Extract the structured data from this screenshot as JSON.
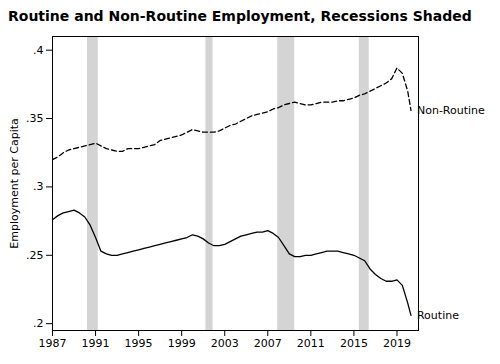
{
  "chart_data": {
    "type": "line",
    "title": "Routine and Non-Routine Employment, Recessions Shaded",
    "ylabel": "Employment per Capita",
    "x": [
      1987,
      1987.5,
      1988,
      1988.5,
      1989,
      1989.5,
      1990,
      1990.5,
      1991,
      1991.5,
      1992,
      1992.5,
      1993,
      1993.5,
      1994,
      1994.5,
      1995,
      1995.5,
      1996,
      1996.5,
      1997,
      1997.5,
      1998,
      1998.5,
      1999,
      1999.5,
      2000,
      2000.5,
      2001,
      2001.5,
      2002,
      2002.5,
      2003,
      2003.5,
      2004,
      2004.5,
      2005,
      2005.5,
      2006,
      2006.5,
      2007,
      2007.5,
      2008,
      2008.5,
      2009,
      2009.5,
      2010,
      2010.5,
      2011,
      2011.5,
      2012,
      2012.5,
      2013,
      2013.5,
      2014,
      2014.5,
      2015,
      2015.5,
      2016,
      2016.5,
      2017,
      2017.5,
      2018,
      2018.5,
      2019,
      2019.5,
      2020,
      2020.3
    ],
    "series": [
      {
        "name": "Non-Routine",
        "color": "#000000",
        "line_style": "dashed",
        "values": [
          0.32,
          0.322,
          0.325,
          0.327,
          0.328,
          0.329,
          0.33,
          0.331,
          0.332,
          0.33,
          0.328,
          0.327,
          0.326,
          0.326,
          0.328,
          0.328,
          0.328,
          0.329,
          0.33,
          0.331,
          0.334,
          0.335,
          0.336,
          0.337,
          0.338,
          0.34,
          0.342,
          0.341,
          0.34,
          0.34,
          0.34,
          0.341,
          0.343,
          0.345,
          0.346,
          0.348,
          0.35,
          0.352,
          0.353,
          0.354,
          0.355,
          0.357,
          0.358,
          0.36,
          0.361,
          0.362,
          0.361,
          0.36,
          0.36,
          0.361,
          0.362,
          0.362,
          0.362,
          0.363,
          0.363,
          0.364,
          0.365,
          0.367,
          0.368,
          0.37,
          0.372,
          0.374,
          0.376,
          0.379,
          0.387,
          0.383,
          0.37,
          0.356
        ]
      },
      {
        "name": "Routine",
        "color": "#000000",
        "line_style": "solid",
        "values": [
          0.276,
          0.279,
          0.281,
          0.282,
          0.283,
          0.281,
          0.278,
          0.272,
          0.263,
          0.253,
          0.251,
          0.25,
          0.25,
          0.251,
          0.252,
          0.253,
          0.254,
          0.255,
          0.256,
          0.257,
          0.258,
          0.259,
          0.26,
          0.261,
          0.262,
          0.263,
          0.265,
          0.264,
          0.262,
          0.259,
          0.257,
          0.257,
          0.258,
          0.26,
          0.262,
          0.264,
          0.265,
          0.266,
          0.267,
          0.267,
          0.268,
          0.266,
          0.263,
          0.257,
          0.251,
          0.249,
          0.249,
          0.25,
          0.25,
          0.251,
          0.252,
          0.253,
          0.253,
          0.253,
          0.252,
          0.251,
          0.25,
          0.248,
          0.246,
          0.24,
          0.236,
          0.233,
          0.231,
          0.231,
          0.232,
          0.228,
          0.215,
          0.206
        ]
      }
    ],
    "recession_bands": {
      "ranges": [
        [
          1990.25,
          1991.25
        ],
        [
          2001.25,
          2001.92
        ],
        [
          2007.92,
          2009.5
        ],
        [
          2015.5,
          2016.42
        ]
      ],
      "color": "#d4d4d4"
    },
    "xlim": [
      1987,
      2021
    ],
    "xticks": [
      1987,
      1991,
      1995,
      1999,
      2003,
      2007,
      2011,
      2015,
      2019
    ],
    "ylim": [
      0.195,
      0.41
    ],
    "yticks": [
      {
        "value": 0.2,
        "label": ".2"
      },
      {
        "value": 0.25,
        "label": ".25"
      },
      {
        "value": 0.3,
        "label": ".3"
      },
      {
        "value": 0.35,
        "label": ".35"
      },
      {
        "value": 0.4,
        "label": ".4"
      }
    ],
    "grid": false
  }
}
